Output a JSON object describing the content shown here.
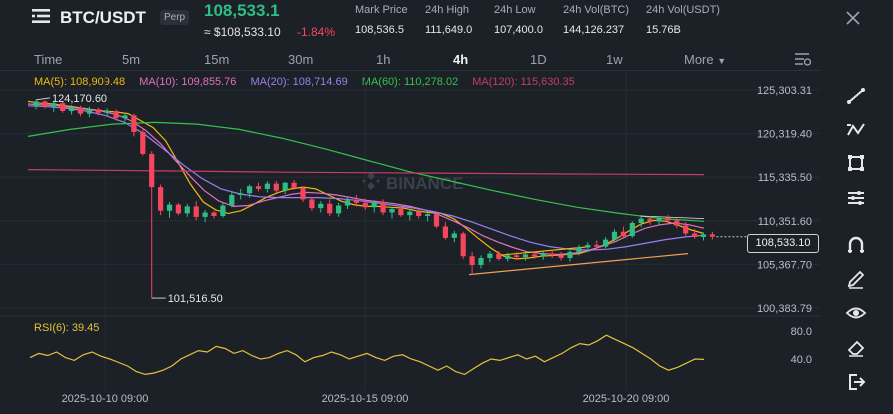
{
  "header": {
    "logo_icon": "hamburger-menu-icon",
    "pair": "BTC/USDT",
    "badge": "Perp",
    "last_price": "108,533.1",
    "usd_price": "≈ $108,533.10",
    "change": "-1.84%",
    "stats": [
      {
        "label": "Mark Price",
        "value": "108,536.5"
      },
      {
        "label": "24h High",
        "value": "111,649.0"
      },
      {
        "label": "24h Low",
        "value": "107,400.0"
      },
      {
        "label": "24h Vol(BTC)",
        "value": "144,126.237"
      },
      {
        "label": "24h Vol(USDT)",
        "value": "15.76B"
      }
    ],
    "close_icon": "close-icon"
  },
  "timeframes": [
    "Time",
    "5m",
    "15m",
    "30m",
    "1h",
    "4h",
    "1D",
    "1w",
    "More"
  ],
  "active_timeframe": "4h",
  "moving_averages": [
    {
      "label": "MA(5): 108,909.48",
      "color": "#f0b90b"
    },
    {
      "label": "MA(10): 109,855.76",
      "color": "#e46fc0"
    },
    {
      "label": "MA(20): 108,714.69",
      "color": "#9a7ff0"
    },
    {
      "label": "MA(60): 110,278.02",
      "color": "#35c24b"
    },
    {
      "label": "MA(120): 115,630.35",
      "color": "#c43c6b"
    }
  ],
  "watermark": "BINANCE",
  "chart_data": {
    "type": "candlestick",
    "y_axis_labels": [
      "125,303.31",
      "120,319.40",
      "115,335.50",
      "110,351.60",
      "105,367.70",
      "100,383.79"
    ],
    "y_axis_values": [
      125303.31,
      120319.4,
      115335.5,
      110351.6,
      105367.7,
      100383.79
    ],
    "x_axis_labels": [
      "2025-10-10 09:00",
      "2025-10-15 09:00",
      "2025-10-20 09:00"
    ],
    "current_price_label": "108,533.10",
    "high_marker": "124,170.60",
    "low_marker": "101,516.50",
    "candles": [
      {
        "o": 123500,
        "h": 124170.6,
        "l": 123100,
        "c": 124000
      },
      {
        "o": 124000,
        "h": 124100,
        "l": 123200,
        "c": 123400
      },
      {
        "o": 123400,
        "h": 124000,
        "l": 122800,
        "c": 123800
      },
      {
        "o": 123800,
        "h": 124050,
        "l": 122700,
        "c": 122900
      },
      {
        "o": 122900,
        "h": 123600,
        "l": 122500,
        "c": 123300
      },
      {
        "o": 123300,
        "h": 123500,
        "l": 122300,
        "c": 122600
      },
      {
        "o": 122600,
        "h": 123400,
        "l": 122200,
        "c": 123100
      },
      {
        "o": 123100,
        "h": 123300,
        "l": 122400,
        "c": 122700
      },
      {
        "o": 122700,
        "h": 123200,
        "l": 122300,
        "c": 122900
      },
      {
        "o": 122900,
        "h": 123100,
        "l": 121800,
        "c": 122100
      },
      {
        "o": 122100,
        "h": 122700,
        "l": 121700,
        "c": 122400
      },
      {
        "o": 122400,
        "h": 122600,
        "l": 120000,
        "c": 120500
      },
      {
        "o": 120500,
        "h": 120800,
        "l": 117800,
        "c": 118000
      },
      {
        "o": 118000,
        "h": 118300,
        "l": 101516.5,
        "c": 114200
      },
      {
        "o": 114200,
        "h": 114500,
        "l": 111000,
        "c": 111500
      },
      {
        "o": 111500,
        "h": 112500,
        "l": 110700,
        "c": 112200
      },
      {
        "o": 112200,
        "h": 112400,
        "l": 111000,
        "c": 111200
      },
      {
        "o": 111200,
        "h": 112300,
        "l": 110800,
        "c": 112000
      },
      {
        "o": 112000,
        "h": 112600,
        "l": 110400,
        "c": 110800
      },
      {
        "o": 110800,
        "h": 111600,
        "l": 110200,
        "c": 111300
      },
      {
        "o": 111300,
        "h": 111500,
        "l": 110600,
        "c": 110900
      },
      {
        "o": 110900,
        "h": 112400,
        "l": 110700,
        "c": 112100
      },
      {
        "o": 112100,
        "h": 113600,
        "l": 111900,
        "c": 113300
      },
      {
        "o": 113300,
        "h": 114000,
        "l": 112800,
        "c": 113500
      },
      {
        "o": 113500,
        "h": 114500,
        "l": 113000,
        "c": 114300
      },
      {
        "o": 114300,
        "h": 114700,
        "l": 113700,
        "c": 114000
      },
      {
        "o": 114000,
        "h": 114900,
        "l": 113600,
        "c": 114600
      },
      {
        "o": 114600,
        "h": 114900,
        "l": 113500,
        "c": 113800
      },
      {
        "o": 113800,
        "h": 114800,
        "l": 113400,
        "c": 114700
      },
      {
        "o": 114700,
        "h": 115000,
        "l": 113900,
        "c": 114100
      },
      {
        "o": 114100,
        "h": 114300,
        "l": 112500,
        "c": 112800
      },
      {
        "o": 112800,
        "h": 113100,
        "l": 111500,
        "c": 111800
      },
      {
        "o": 111800,
        "h": 112600,
        "l": 111300,
        "c": 112300
      },
      {
        "o": 112300,
        "h": 112800,
        "l": 110900,
        "c": 111200
      },
      {
        "o": 111200,
        "h": 112400,
        "l": 110800,
        "c": 112100
      },
      {
        "o": 112100,
        "h": 113000,
        "l": 111700,
        "c": 112700
      },
      {
        "o": 112700,
        "h": 113300,
        "l": 112000,
        "c": 112400
      },
      {
        "o": 112400,
        "h": 112900,
        "l": 111600,
        "c": 111900
      },
      {
        "o": 111900,
        "h": 112700,
        "l": 111300,
        "c": 112500
      },
      {
        "o": 112500,
        "h": 112800,
        "l": 111000,
        "c": 111300
      },
      {
        "o": 111300,
        "h": 111900,
        "l": 110600,
        "c": 111700
      },
      {
        "o": 111700,
        "h": 112000,
        "l": 110800,
        "c": 111000
      },
      {
        "o": 111000,
        "h": 111600,
        "l": 110400,
        "c": 111400
      },
      {
        "o": 111400,
        "h": 111700,
        "l": 110600,
        "c": 110900
      },
      {
        "o": 110900,
        "h": 111400,
        "l": 110300,
        "c": 111100
      },
      {
        "o": 111100,
        "h": 111300,
        "l": 109500,
        "c": 109700
      },
      {
        "o": 109700,
        "h": 110200,
        "l": 108200,
        "c": 108400
      },
      {
        "o": 108400,
        "h": 109200,
        "l": 107900,
        "c": 108900
      },
      {
        "o": 108900,
        "h": 109100,
        "l": 106000,
        "c": 106300
      },
      {
        "o": 106300,
        "h": 106800,
        "l": 104200,
        "c": 105300
      },
      {
        "o": 105300,
        "h": 106400,
        "l": 104900,
        "c": 106100
      },
      {
        "o": 106100,
        "h": 106900,
        "l": 105600,
        "c": 106600
      },
      {
        "o": 106600,
        "h": 106900,
        "l": 105800,
        "c": 106000
      },
      {
        "o": 106000,
        "h": 106700,
        "l": 105700,
        "c": 106400
      },
      {
        "o": 106400,
        "h": 106800,
        "l": 105900,
        "c": 106200
      },
      {
        "o": 106200,
        "h": 106700,
        "l": 105800,
        "c": 106500
      },
      {
        "o": 106500,
        "h": 106900,
        "l": 106000,
        "c": 106300
      },
      {
        "o": 106300,
        "h": 106800,
        "l": 105900,
        "c": 106600
      },
      {
        "o": 106600,
        "h": 107000,
        "l": 106100,
        "c": 106400
      },
      {
        "o": 106400,
        "h": 106800,
        "l": 105800,
        "c": 106100
      },
      {
        "o": 106100,
        "h": 107000,
        "l": 105700,
        "c": 106800
      },
      {
        "o": 106800,
        "h": 107600,
        "l": 106400,
        "c": 107300
      },
      {
        "o": 107300,
        "h": 107900,
        "l": 106800,
        "c": 107600
      },
      {
        "o": 107600,
        "h": 108100,
        "l": 107000,
        "c": 107400
      },
      {
        "o": 107400,
        "h": 108500,
        "l": 107200,
        "c": 108200
      },
      {
        "o": 108200,
        "h": 109400,
        "l": 107900,
        "c": 109100
      },
      {
        "o": 109100,
        "h": 109700,
        "l": 108300,
        "c": 108600
      },
      {
        "o": 108600,
        "h": 110300,
        "l": 108400,
        "c": 110100
      },
      {
        "o": 110100,
        "h": 110800,
        "l": 109600,
        "c": 110600
      },
      {
        "o": 110600,
        "h": 110900,
        "l": 109900,
        "c": 110300
      },
      {
        "o": 110300,
        "h": 110800,
        "l": 109800,
        "c": 110700
      },
      {
        "o": 110700,
        "h": 111000,
        "l": 110000,
        "c": 110400
      },
      {
        "o": 110400,
        "h": 110700,
        "l": 109500,
        "c": 109800
      },
      {
        "o": 109800,
        "h": 110200,
        "l": 108600,
        "c": 108900
      },
      {
        "o": 108900,
        "h": 109400,
        "l": 108300,
        "c": 108500
      },
      {
        "o": 108500,
        "h": 109000,
        "l": 108100,
        "c": 108800
      },
      {
        "o": 108800,
        "h": 109100,
        "l": 108200,
        "c": 108533.1
      }
    ],
    "ma_series": [
      {
        "name": "MA(5)",
        "color": "#f0b90b",
        "y": [
          124000,
          123800,
          123700,
          123500,
          123300,
          123100,
          122900,
          122800,
          122600,
          121800,
          121000,
          119500,
          117000,
          114500,
          112500,
          111600,
          111200,
          111500,
          112200,
          113000,
          113600,
          114000,
          114200,
          114000,
          113300,
          112600,
          112200,
          112000,
          112000,
          111900,
          111800,
          111500,
          111300,
          111200,
          110600,
          109500,
          108300,
          107200,
          106300,
          106000,
          106100,
          106300,
          106400,
          106500,
          106600,
          107000,
          107600,
          108300,
          109200,
          110000,
          110400,
          110300,
          109800,
          109300,
          108900
        ]
      },
      {
        "name": "MA(10)",
        "color": "#e46fc0",
        "y": [
          123700,
          123600,
          123500,
          123300,
          123100,
          122900,
          122500,
          121800,
          120700,
          119200,
          117300,
          115500,
          113800,
          112600,
          112000,
          112100,
          112600,
          113000,
          113400,
          113600,
          113500,
          113300,
          113000,
          112700,
          112500,
          112300,
          112000,
          111600,
          111000,
          110300,
          109500,
          108600,
          107900,
          107300,
          106800,
          106600,
          106500,
          106600,
          106900,
          107400,
          108000,
          108800,
          109500,
          109900,
          110100,
          109900,
          109500
        ]
      },
      {
        "name": "MA(20)",
        "color": "#9a7ff0",
        "y": [
          123500,
          123400,
          123200,
          122900,
          122400,
          121600,
          120300,
          118600,
          116800,
          115200,
          114000,
          113400,
          113100,
          113000,
          113000,
          113000,
          112900,
          112700,
          112400,
          112100,
          111800,
          111400,
          110900,
          110200,
          109400,
          108600,
          107900,
          107400,
          107100,
          107000,
          107100,
          107400,
          107800,
          108200,
          108500,
          108700
        ]
      },
      {
        "name": "MA(60)",
        "color": "#35c24b",
        "y": [
          120000,
          120800,
          121400,
          121600,
          121400,
          120800,
          119800,
          118600,
          117300,
          116000,
          114900,
          113800,
          112800,
          111900,
          111200,
          110600,
          110300
        ]
      },
      {
        "name": "MA(120)",
        "color": "#c43c6b",
        "y": [
          116200,
          116050,
          115900,
          115800,
          115700,
          115630
        ]
      }
    ],
    "rsi": {
      "label": "RSI(6): 39.45",
      "axis_labels": [
        "80.0",
        "40.0"
      ],
      "axis_values": [
        80,
        40
      ],
      "values": [
        42,
        48,
        45,
        50,
        42,
        38,
        46,
        50,
        44,
        40,
        35,
        30,
        22,
        18,
        20,
        24,
        30,
        40,
        46,
        52,
        50,
        58,
        55,
        48,
        52,
        45,
        40,
        42,
        48,
        52,
        46,
        36,
        42,
        45,
        50,
        46,
        40,
        44,
        48,
        42,
        38,
        44,
        46,
        40,
        36,
        30,
        24,
        30,
        22,
        18,
        26,
        34,
        40,
        38,
        42,
        46,
        40,
        44,
        36,
        42,
        48,
        56,
        62,
        60,
        66,
        74,
        68,
        62,
        56,
        48,
        40,
        30,
        24,
        28,
        34,
        40,
        39.45
      ]
    }
  },
  "toolbar": [
    "trend-line-icon",
    "multi-segment-icon",
    "rectangle-icon",
    "horizontal-lines-icon",
    "magnet-icon",
    "pencil-icon",
    "eye-icon",
    "eraser-icon",
    "share-icon"
  ]
}
